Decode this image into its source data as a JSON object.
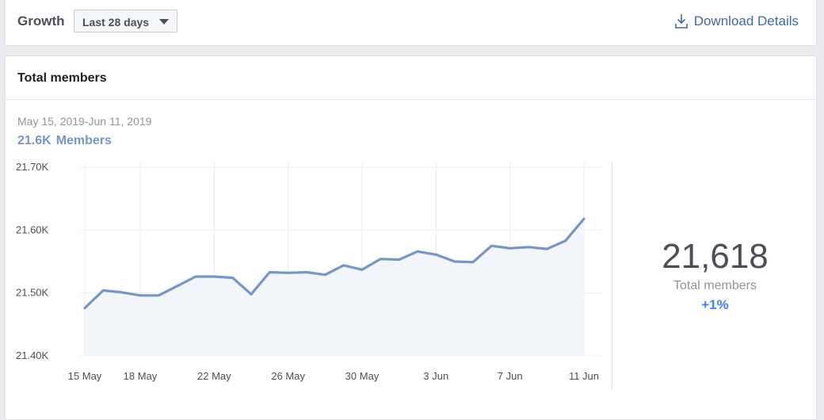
{
  "header": {
    "title": "Growth",
    "range_select": "Last 28 days",
    "download_label": "Download Details"
  },
  "card": {
    "title": "Total members",
    "date_range": "May 15, 2019-Jun 11, 2019",
    "summary_value": "21.6K",
    "summary_label": "Members"
  },
  "stat": {
    "value": "21,618",
    "label": "Total members",
    "change": "+1%"
  },
  "colors": {
    "line": "#7596c8",
    "area": "#f2f5fa",
    "grid": "#e9ebee",
    "link": "#4267b2",
    "change": "#4080ff"
  },
  "chart_data": {
    "type": "area",
    "x": [
      "15 May",
      "16 May",
      "17 May",
      "18 May",
      "19 May",
      "20 May",
      "21 May",
      "22 May",
      "23 May",
      "24 May",
      "25 May",
      "26 May",
      "27 May",
      "28 May",
      "29 May",
      "30 May",
      "31 May",
      "1 Jun",
      "2 Jun",
      "3 Jun",
      "4 Jun",
      "5 Jun",
      "6 Jun",
      "7 Jun",
      "8 Jun",
      "9 Jun",
      "10 Jun",
      "11 Jun"
    ],
    "values": [
      21476,
      21504,
      21501,
      21496,
      21496,
      21511,
      21526,
      21526,
      21524,
      21498,
      21533,
      21532,
      21533,
      21529,
      21544,
      21537,
      21554,
      21553,
      21566,
      21561,
      21550,
      21549,
      21575,
      21571,
      21573,
      21570,
      21583,
      21618
    ],
    "xticks": [
      "15 May",
      "18 May",
      "22 May",
      "26 May",
      "30 May",
      "3 Jun",
      "7 Jun",
      "11 Jun"
    ],
    "yticks": [
      "21.70K",
      "21.60K",
      "21.50K",
      "21.40K"
    ],
    "ylim": [
      21400,
      21700
    ],
    "grid": true
  }
}
